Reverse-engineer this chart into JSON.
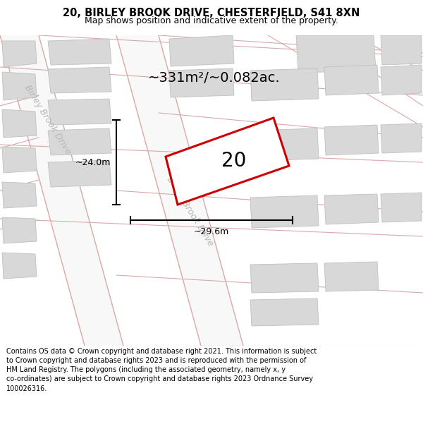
{
  "title_line1": "20, BIRLEY BROOK DRIVE, CHESTERFIELD, S41 8XN",
  "title_line2": "Map shows position and indicative extent of the property.",
  "area_text": "~331m²/~0.082ac.",
  "label_number": "20",
  "dim_vertical": "~24.0m",
  "dim_horizontal": "~29.6m",
  "road_label": "Birley Brook Drive",
  "footer_text": "Contains OS data © Crown copyright and database right 2021. This information is subject to Crown copyright and database rights 2023 and is reproduced with the permission of HM Land Registry. The polygons (including the associated geometry, namely x, y co-ordinates) are subject to Crown copyright and database rights 2023 Ordnance Survey 100026316.",
  "bg_color": "#ffffff",
  "map_bg": "#ebebeb",
  "plot_fill": "#ffffff",
  "plot_edge": "#cc0000",
  "road_fill": "#f8f8f8",
  "road_color": "#d9a8a8",
  "building_fill": "#d8d8d8",
  "building_edge": "#c0c0c0",
  "title_fontsize": 10.5,
  "subtitle_fontsize": 9,
  "area_fontsize": 14,
  "label_fontsize": 20,
  "dim_fontsize": 9,
  "footer_fontsize": 7,
  "road_label_color": "#b8b8b8",
  "road_label_fontsize": 9
}
